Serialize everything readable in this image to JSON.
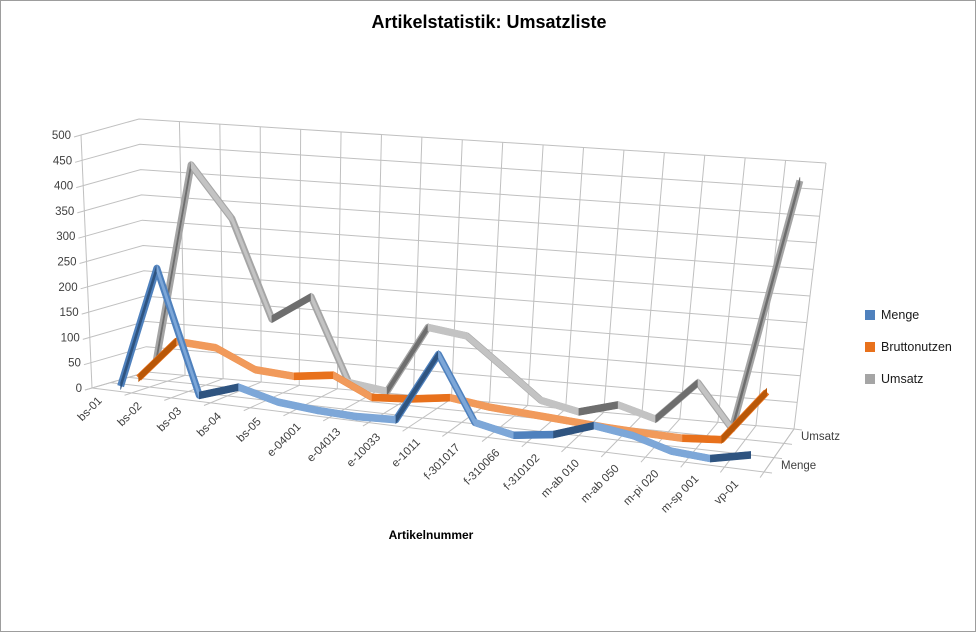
{
  "chart_data": {
    "type": "line",
    "projection": "3d",
    "title": "Artikelstatistik: Umsatzliste",
    "xlabel": "Artikelnummer",
    "ylabel": "",
    "ylim": [
      0,
      500
    ],
    "ytick_step": 50,
    "yticks": [
      0,
      50,
      100,
      150,
      200,
      250,
      300,
      350,
      400,
      450,
      500
    ],
    "grid": true,
    "legend_position": "right",
    "depth_axis_labels": [
      "Umsatz",
      "Menge"
    ],
    "categories": [
      "bs-01",
      "bs-02",
      "bs-03",
      "bs-04",
      "bs-05",
      "e-04001",
      "e-04013",
      "e-10033",
      "e-1011",
      "f-301017",
      "f-310066",
      "f-310102",
      "m-ab 010",
      "m-ab 050",
      "m-pi 020",
      "m-sp 001",
      "vp-01"
    ],
    "series": [
      {
        "name": "Menge",
        "color": "#4F81BD",
        "color_dark": "#2F5480",
        "color_light": "#7DA7D8",
        "values": [
          10,
          250,
          10,
          35,
          15,
          8,
          5,
          8,
          140,
          20,
          5,
          15,
          40,
          30,
          10,
          5,
          20
        ]
      },
      {
        "name": "Bruttonutzen",
        "color": "#E8711C",
        "color_dark": "#B85708",
        "color_light": "#F19A5B",
        "values": [
          15,
          95,
          90,
          55,
          50,
          60,
          25,
          30,
          40,
          30,
          25,
          20,
          15,
          12,
          10,
          15,
          110
        ]
      },
      {
        "name": "Umsatz",
        "color": "#A5A5A5",
        "color_dark": "#6E6E6E",
        "color_light": "#C3C3C3",
        "values": [
          40,
          430,
          330,
          140,
          190,
          30,
          20,
          150,
          140,
          85,
          30,
          15,
          35,
          15,
          90,
          10,
          480
        ]
      }
    ],
    "colors": {
      "grid": "#C0C0C0",
      "tick_text": "#3F3F3F",
      "title_text": "#000000"
    }
  }
}
